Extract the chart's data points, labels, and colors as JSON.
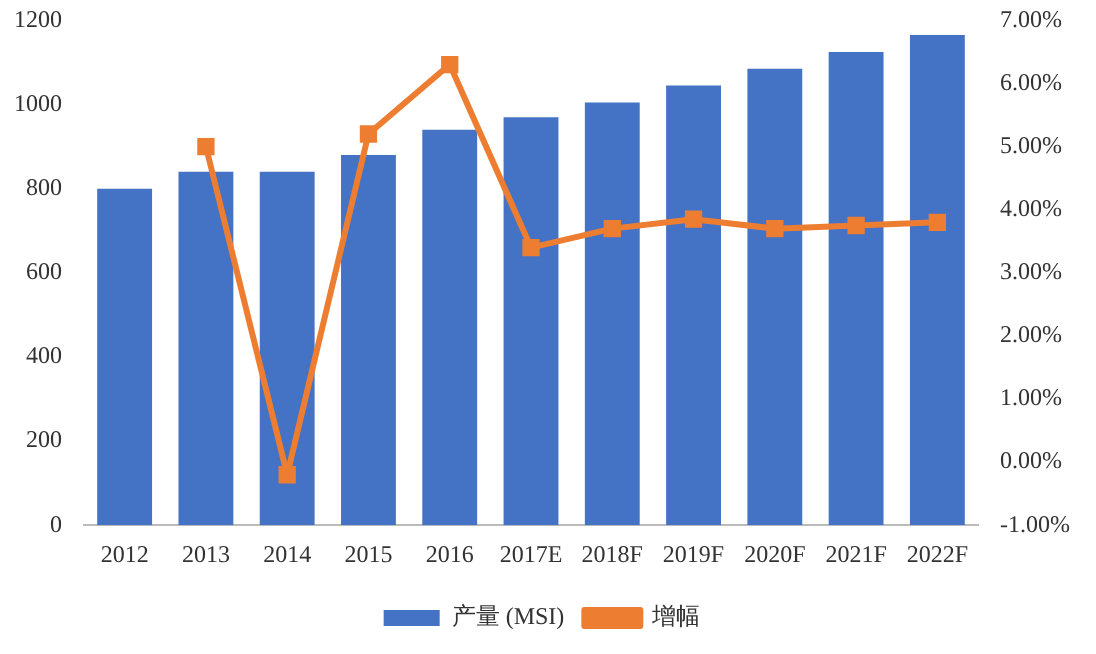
{
  "chart_data": {
    "type": "bar",
    "categories": [
      "2012",
      "2013",
      "2014",
      "2015",
      "2016",
      "2017E",
      "2018F",
      "2019F",
      "2020F",
      "2021F",
      "2022F"
    ],
    "series": [
      {
        "name": "产量 (MSI)",
        "color": "#4472c4",
        "values": [
          800,
          840,
          840,
          880,
          940,
          970,
          1005,
          1045,
          1085,
          1125,
          1165
        ]
      },
      {
        "name": "增幅",
        "type": "line",
        "axis": "y2",
        "color": "#ed7d31",
        "marker": "square",
        "values": [
          null,
          5.0,
          -0.2,
          5.2,
          6.3,
          3.4,
          3.7,
          3.85,
          3.7,
          3.75,
          3.8
        ]
      }
    ],
    "ylim": [
      0,
      1200
    ],
    "yticks": [
      0,
      200,
      400,
      600,
      800,
      1000,
      1200
    ],
    "y2lim": [
      -1,
      7
    ],
    "y2ticks": [
      {
        "value": -1,
        "label": "-1.00%"
      },
      {
        "value": 0,
        "label": "0.00%"
      },
      {
        "value": 1,
        "label": "1.00%"
      },
      {
        "value": 2,
        "label": "2.00%"
      },
      {
        "value": 3,
        "label": "3.00%"
      },
      {
        "value": 4,
        "label": "4.00%"
      },
      {
        "value": 5,
        "label": "5.00%"
      },
      {
        "value": 6,
        "label": "6.00%"
      },
      {
        "value": 7,
        "label": "7.00%"
      }
    ],
    "grid": false,
    "legend": "bottom"
  }
}
